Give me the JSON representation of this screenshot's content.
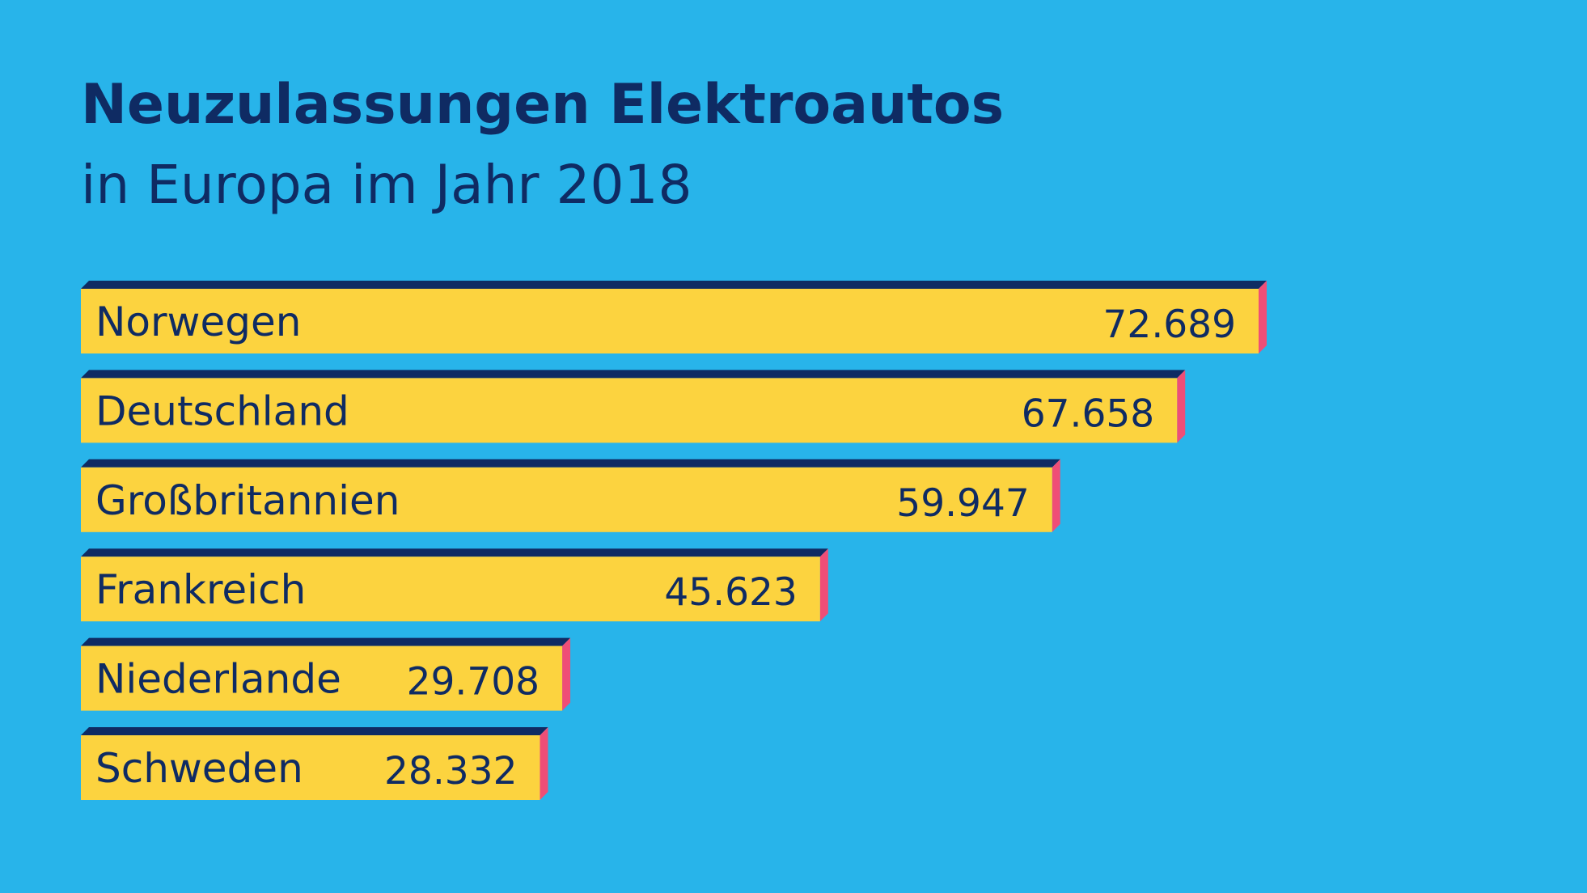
{
  "title": "Neuzulassungen Elektroautos",
  "subtitle": "in Europa im Jahr 2018",
  "colors": {
    "background": "#28b4ea",
    "text": "#0f2b63",
    "bar": "#fcd33f",
    "bar_top_edge": "#0f2b63",
    "bar_side_edge": "#ef4e77"
  },
  "chart_data": {
    "type": "bar",
    "orientation": "horizontal",
    "title": "Neuzulassungen Elektroautos",
    "subtitle": "in Europa im Jahr 2018",
    "categories": [
      "Norwegen",
      "Deutschland",
      "Großbritannien",
      "Frankreich",
      "Niederlande",
      "Schweden"
    ],
    "values": [
      72689,
      67658,
      59947,
      45623,
      29708,
      28332
    ],
    "value_labels": [
      "72.689",
      "67.658",
      "59.947",
      "45.623",
      "29.708",
      "28.332"
    ],
    "xlabel": "",
    "ylabel": "",
    "grid": false
  }
}
